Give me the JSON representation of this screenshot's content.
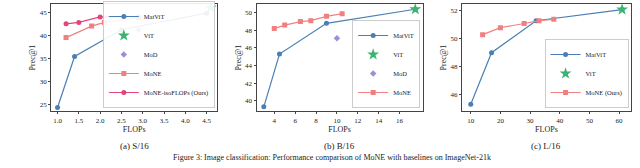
{
  "caption": "Figure 3: Image classification: Performance comparison of MoNE with baselines on ImageNet-21k",
  "chart_data": [
    {
      "type": "line",
      "title": "(a) S/16",
      "x_label": "FLOPs",
      "y_label": "Prec@1",
      "xlim": [
        0.85,
        4.75
      ],
      "ylim": [
        23.5,
        46.8
      ],
      "xticks": [
        {
          "value": 1.0,
          "label": "1.0"
        },
        1.5,
        {
          "value": 2.0,
          "label": "2.0"
        },
        2.5,
        {
          "value": 3.0,
          "label": "3.0"
        },
        3.5,
        {
          "value": 4.0,
          "label": "4.0"
        },
        4.5
      ],
      "yticks": [
        25,
        30,
        35,
        40,
        45
      ],
      "grid": false,
      "legend": "lower right",
      "series": [
        {
          "name": "MatViT",
          "type": "line",
          "color": "#4a7fb5",
          "marker": "circle",
          "line_style": "solid",
          "x": [
            1.0,
            1.4,
            2.5,
            4.5
          ],
          "values": [
            24.3,
            35.4,
            41.2,
            44.8
          ]
        },
        {
          "name": "ViT",
          "type": "scatter",
          "color": "#3cb371",
          "marker": "star",
          "x": [
            4.6
          ],
          "values": [
            46.0
          ]
        },
        {
          "name": "MoD",
          "type": "scatter",
          "color": "#9b8fd6",
          "marker": "diamond",
          "x": [
            2.9
          ],
          "values": [
            41.2
          ]
        },
        {
          "name": "MoNE",
          "type": "line",
          "color": "#f08080",
          "marker": "square",
          "line_style": "solid",
          "x": [
            1.2,
            1.8,
            2.1,
            2.9
          ],
          "values": [
            39.5,
            42.0,
            42.8,
            43.8
          ]
        },
        {
          "name": "MoNE-isoFLOPs (Ours)",
          "type": "line",
          "color": "#e0457b",
          "marker": "circle",
          "line_style": "solid",
          "x": [
            1.2,
            1.5,
            2.0,
            2.9
          ],
          "values": [
            42.5,
            42.8,
            44.0,
            44.0
          ]
        }
      ]
    },
    {
      "type": "line",
      "title": "(b) B/16",
      "x_label": "FLOPs",
      "y_label": "Prec@1",
      "xlim": [
        2.3,
        18.2
      ],
      "ylim": [
        38.8,
        51.0
      ],
      "xticks": [
        4,
        6,
        8,
        10,
        12,
        14,
        16
      ],
      "yticks": [
        40,
        42,
        44,
        46,
        48,
        50
      ],
      "grid": false,
      "legend": "lower right",
      "series": [
        {
          "name": "MatViT",
          "type": "line",
          "color": "#4a7fb5",
          "marker": "circle",
          "line_style": "solid",
          "x": [
            3.0,
            4.5,
            9.0,
            17.5
          ],
          "values": [
            39.3,
            45.3,
            48.8,
            50.4
          ]
        },
        {
          "name": "ViT",
          "type": "scatter",
          "color": "#3cb371",
          "marker": "star",
          "x": [
            17.5
          ],
          "values": [
            50.4
          ]
        },
        {
          "name": "MoD",
          "type": "scatter",
          "color": "#9b8fd6",
          "marker": "diamond",
          "x": [
            10.0
          ],
          "values": [
            47.1
          ]
        },
        {
          "name": "MoNE",
          "type": "line",
          "color": "#f08080",
          "marker": "square",
          "line_style": "solid",
          "x": [
            4.0,
            5.0,
            6.5,
            7.5,
            9.0,
            10.5
          ],
          "values": [
            48.2,
            48.6,
            49.0,
            49.1,
            49.6,
            49.9
          ]
        }
      ]
    },
    {
      "type": "line",
      "title": "(c) L/16",
      "x_label": "FLOPs",
      "y_label": "Prec@1",
      "xlim": [
        7,
        64
      ],
      "ylim": [
        44.8,
        52.5
      ],
      "xticks": [
        10,
        20,
        30,
        40,
        50,
        60
      ],
      "yticks": [
        46,
        48,
        50,
        52
      ],
      "grid": false,
      "legend": "lower right",
      "series": [
        {
          "name": "MatViT",
          "type": "line",
          "color": "#4a7fb5",
          "marker": "circle",
          "line_style": "solid",
          "x": [
            10,
            17,
            32,
            61
          ],
          "values": [
            45.3,
            49.0,
            51.3,
            52.1
          ]
        },
        {
          "name": "ViT",
          "type": "scatter",
          "color": "#3cb371",
          "marker": "star",
          "x": [
            61
          ],
          "values": [
            52.1
          ]
        },
        {
          "name": "MoNE (Ours)",
          "type": "line",
          "color": "#f08080",
          "marker": "square",
          "line_style": "solid",
          "x": [
            14,
            20,
            28,
            33,
            38
          ],
          "values": [
            50.3,
            50.8,
            51.1,
            51.3,
            51.4
          ]
        }
      ]
    }
  ]
}
